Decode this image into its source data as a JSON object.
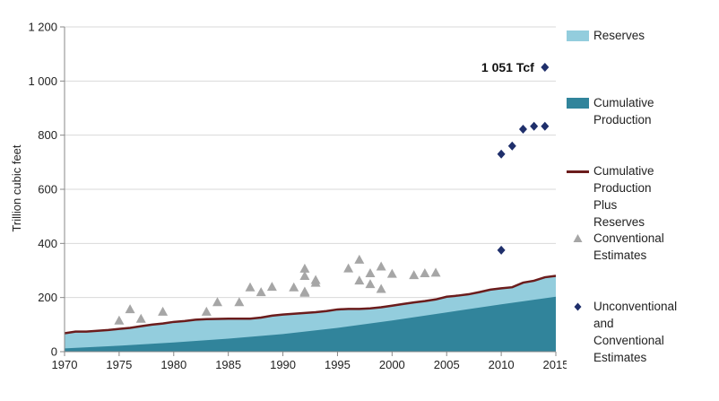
{
  "chart_data": {
    "type": "area",
    "title": "",
    "ylabel": "Trillion cubic feet",
    "xlabel": "",
    "xlim": [
      1970,
      2015
    ],
    "ylim": [
      0,
      1200
    ],
    "xticks": [
      1970,
      1975,
      1980,
      1985,
      1990,
      1995,
      2000,
      2005,
      2010,
      2015
    ],
    "yticks": [
      0,
      200,
      400,
      600,
      800,
      1000,
      1200
    ],
    "ytick_labels": [
      "0",
      "200",
      "400",
      "600",
      "800",
      "1 000",
      "1 200"
    ],
    "grid": "horizontal",
    "legend": "right",
    "colors": {
      "reserves": "#93cddd",
      "cumulative_production": "#31849b",
      "total_line": "#6b1c1c",
      "conventional": "#a6a6a6",
      "unconventional": "#1f2f6b"
    },
    "series": [
      {
        "name": "Cumulative Production",
        "kind": "area",
        "x": [
          1970,
          1975,
          1980,
          1985,
          1990,
          1995,
          2000,
          2005,
          2010,
          2015
        ],
        "values": [
          12,
          22,
          34,
          48,
          65,
          88,
          115,
          145,
          175,
          203
        ]
      },
      {
        "name": "Cumulative Production Plus Reserves",
        "kind": "line",
        "x": [
          1970,
          1971,
          1972,
          1973,
          1974,
          1975,
          1976,
          1977,
          1978,
          1979,
          1980,
          1981,
          1982,
          1983,
          1984,
          1985,
          1986,
          1987,
          1988,
          1989,
          1990,
          1991,
          1992,
          1993,
          1994,
          1995,
          1996,
          1997,
          1998,
          1999,
          2000,
          2001,
          2002,
          2003,
          2004,
          2005,
          2006,
          2007,
          2008,
          2009,
          2010,
          2011,
          2012,
          2013,
          2014,
          2015
        ],
        "values": [
          68,
          74,
          74,
          77,
          80,
          84,
          88,
          94,
          100,
          104,
          110,
          113,
          118,
          120,
          121,
          122,
          122,
          122,
          126,
          133,
          137,
          140,
          143,
          146,
          150,
          156,
          158,
          158,
          160,
          164,
          170,
          176,
          182,
          187,
          193,
          203,
          207,
          212,
          220,
          229,
          234,
          238,
          255,
          262,
          275,
          280
        ]
      },
      {
        "name": "Conventional Estimates",
        "kind": "scatter",
        "marker": "triangle",
        "points": [
          [
            1975,
            115
          ],
          [
            1976,
            157
          ],
          [
            1977,
            122
          ],
          [
            1979,
            148
          ],
          [
            1983,
            148
          ],
          [
            1984,
            183
          ],
          [
            1986,
            183
          ],
          [
            1987,
            238
          ],
          [
            1988,
            220
          ],
          [
            1989,
            240
          ],
          [
            1991,
            238
          ],
          [
            1992,
            307
          ],
          [
            1992,
            280
          ],
          [
            1992,
            222
          ],
          [
            1992,
            218
          ],
          [
            1993,
            265
          ],
          [
            1993,
            255
          ],
          [
            1996,
            308
          ],
          [
            1997,
            340
          ],
          [
            1997,
            263
          ],
          [
            1998,
            290
          ],
          [
            1998,
            250
          ],
          [
            1999,
            315
          ],
          [
            1999,
            232
          ],
          [
            2000,
            288
          ],
          [
            2002,
            283
          ],
          [
            2003,
            290
          ],
          [
            2004,
            292
          ]
        ]
      },
      {
        "name": "Unconventional and Conventional Estimates",
        "kind": "scatter",
        "marker": "diamond",
        "points": [
          [
            2010,
            375
          ],
          [
            2010,
            730
          ],
          [
            2011,
            760
          ],
          [
            2012,
            822
          ],
          [
            2013,
            833
          ],
          [
            2014,
            833
          ],
          [
            2014,
            1051
          ]
        ]
      }
    ],
    "reserves_name": "Reserves",
    "annotation": "1 051 Tcf"
  },
  "legend": {
    "reserves": "Reserves",
    "cumulative_production": [
      "Cumulative",
      "Production"
    ],
    "total_line": [
      "Cumulative",
      "Production Plus",
      "Reserves"
    ],
    "conventional": [
      "Conventional",
      "Estimates"
    ],
    "unconventional": [
      "Unconventional and",
      "Conventional",
      "Estimates"
    ]
  }
}
